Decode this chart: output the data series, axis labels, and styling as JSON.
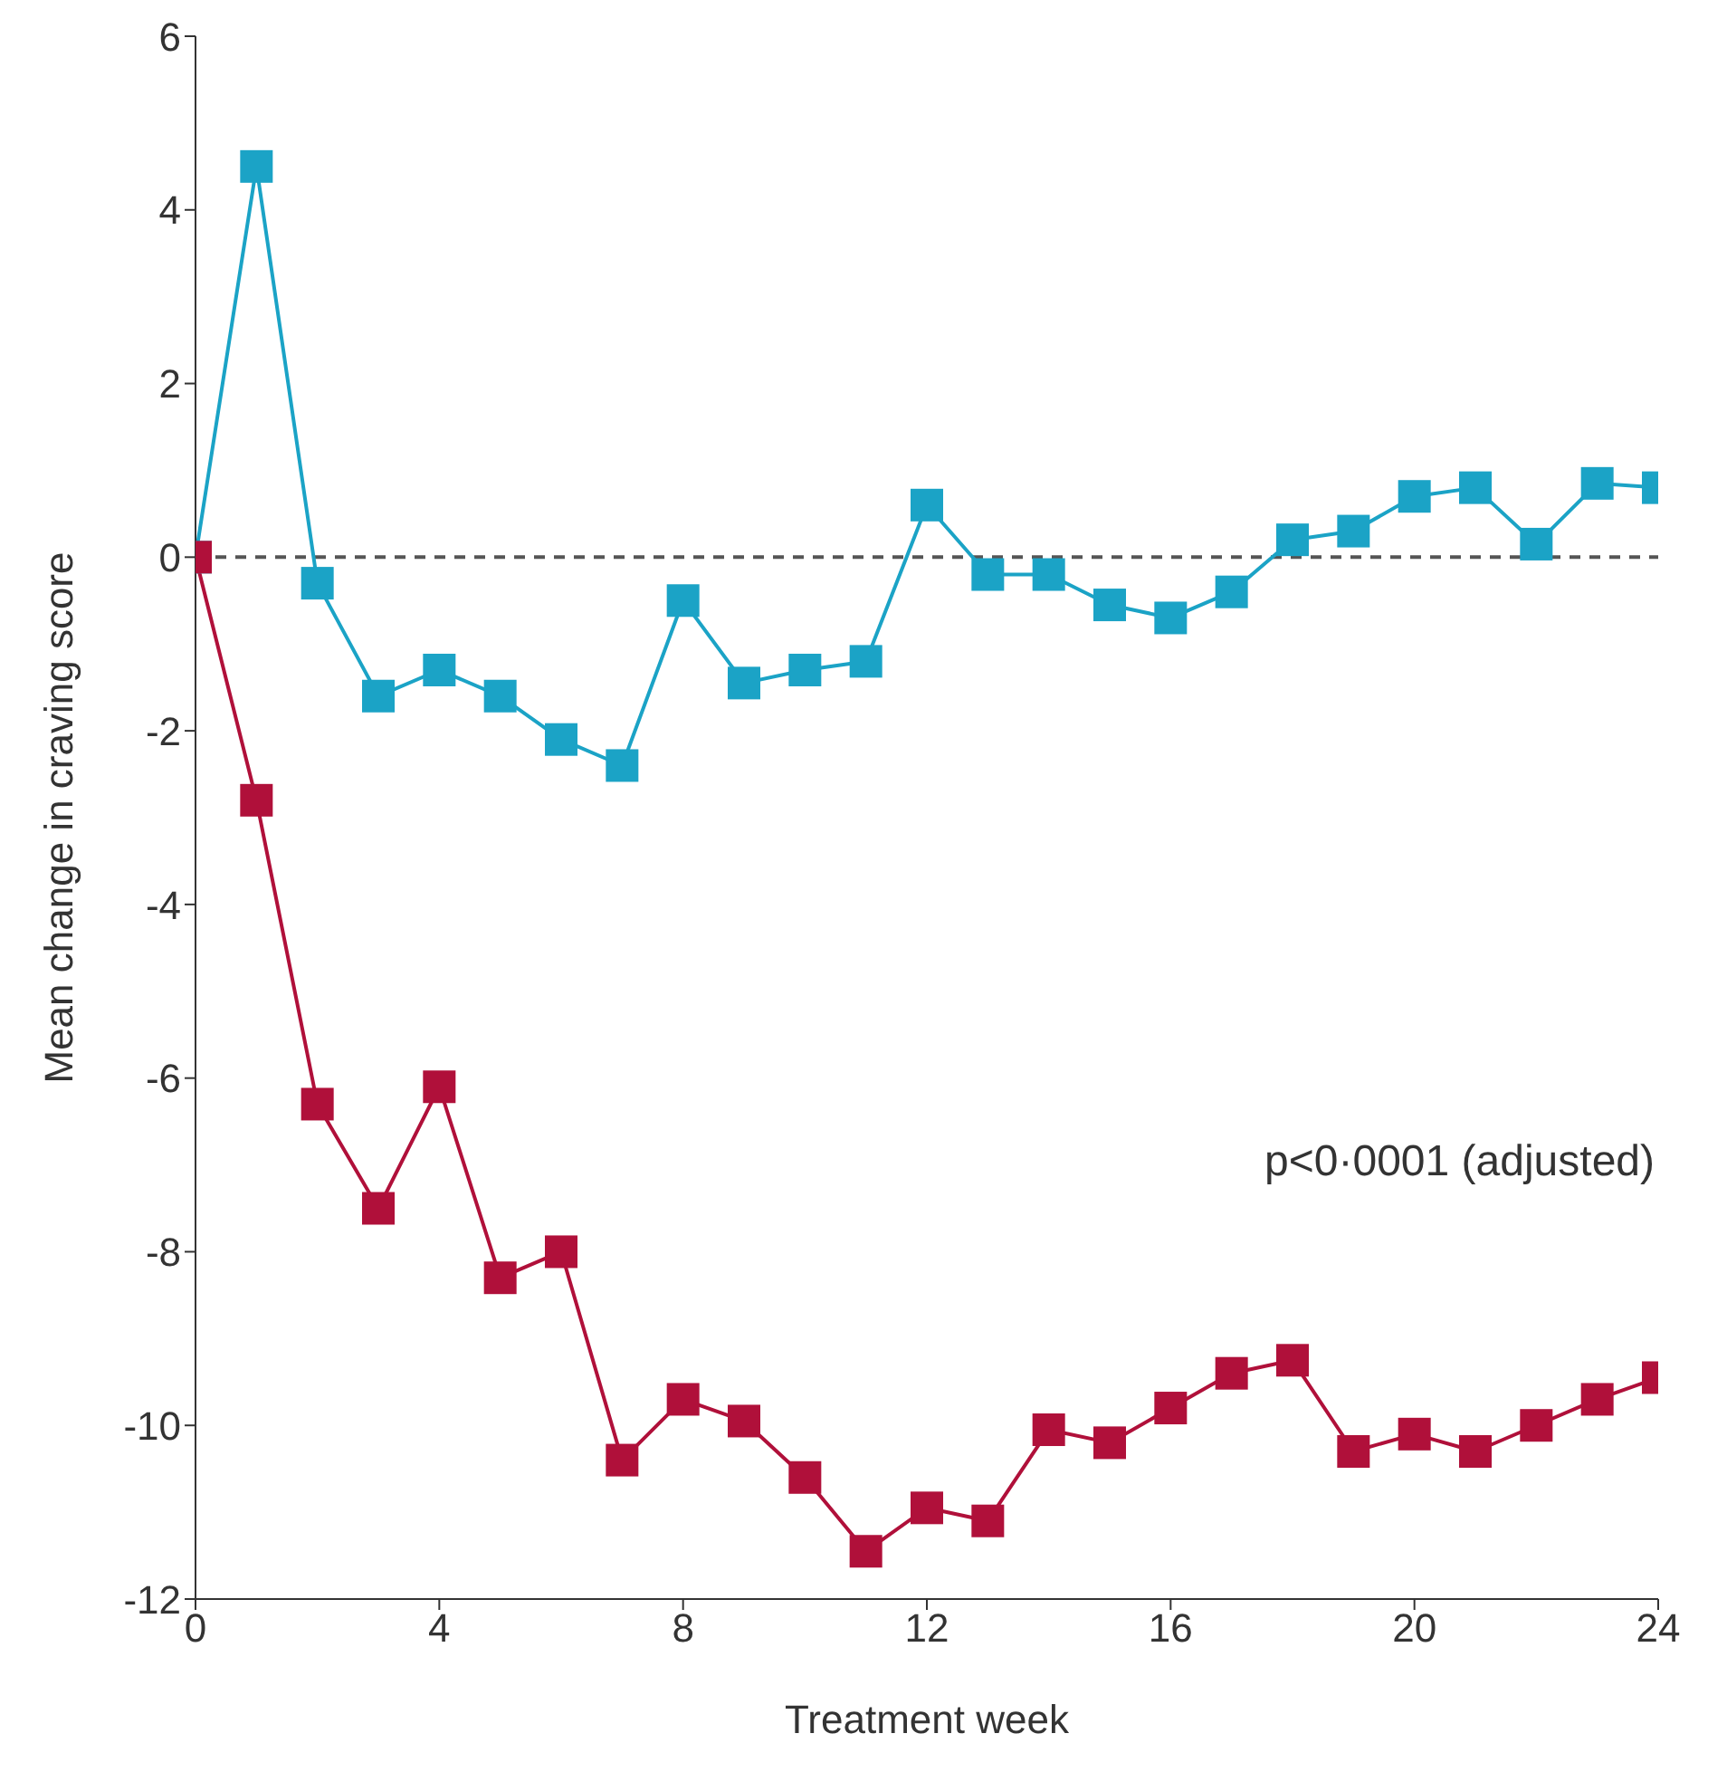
{
  "chart_data": {
    "type": "line",
    "xlabel": "Treatment week",
    "ylabel": "Mean change in craving score",
    "x": [
      0,
      1,
      2,
      3,
      4,
      5,
      6,
      7,
      8,
      9,
      10,
      11,
      12,
      13,
      14,
      15,
      16,
      17,
      18,
      19,
      20,
      21,
      22,
      23,
      24
    ],
    "series": [
      {
        "color": "#1ba3c6",
        "values": [
          0,
          4.5,
          -0.3,
          -1.6,
          -1.3,
          -1.6,
          -2.1,
          -2.4,
          -0.5,
          -1.45,
          -1.3,
          -1.2,
          0.6,
          -0.2,
          -0.2,
          -0.55,
          -0.7,
          -0.4,
          0.2,
          0.3,
          0.7,
          0.8,
          0.15,
          0.85,
          0.8
        ]
      },
      {
        "color": "#b0103a",
        "values": [
          0,
          -2.8,
          -6.3,
          -7.5,
          -6.1,
          -8.3,
          -8.0,
          -10.4,
          -9.7,
          -9.95,
          -10.6,
          -11.45,
          -10.95,
          -11.1,
          -10.05,
          -10.2,
          -9.8,
          -9.4,
          -9.25,
          -10.3,
          -10.1,
          -10.3,
          -10.0,
          -9.7,
          -9.45
        ]
      }
    ],
    "xlim": [
      0,
      24
    ],
    "xticks": [
      0,
      4,
      8,
      12,
      16,
      20,
      24
    ],
    "ylim": [
      -12,
      6
    ],
    "yticks": [
      -12,
      -10,
      -8,
      -6,
      -4,
      -2,
      0,
      2,
      4,
      6
    ],
    "ref_lines": [
      {
        "axis": "y",
        "value": 0,
        "line_style": "dashed",
        "color": "#555555"
      }
    ],
    "annotations": [
      "p<0·0001 (adjusted)"
    ],
    "marker": "square",
    "grid": false,
    "legend": false
  }
}
